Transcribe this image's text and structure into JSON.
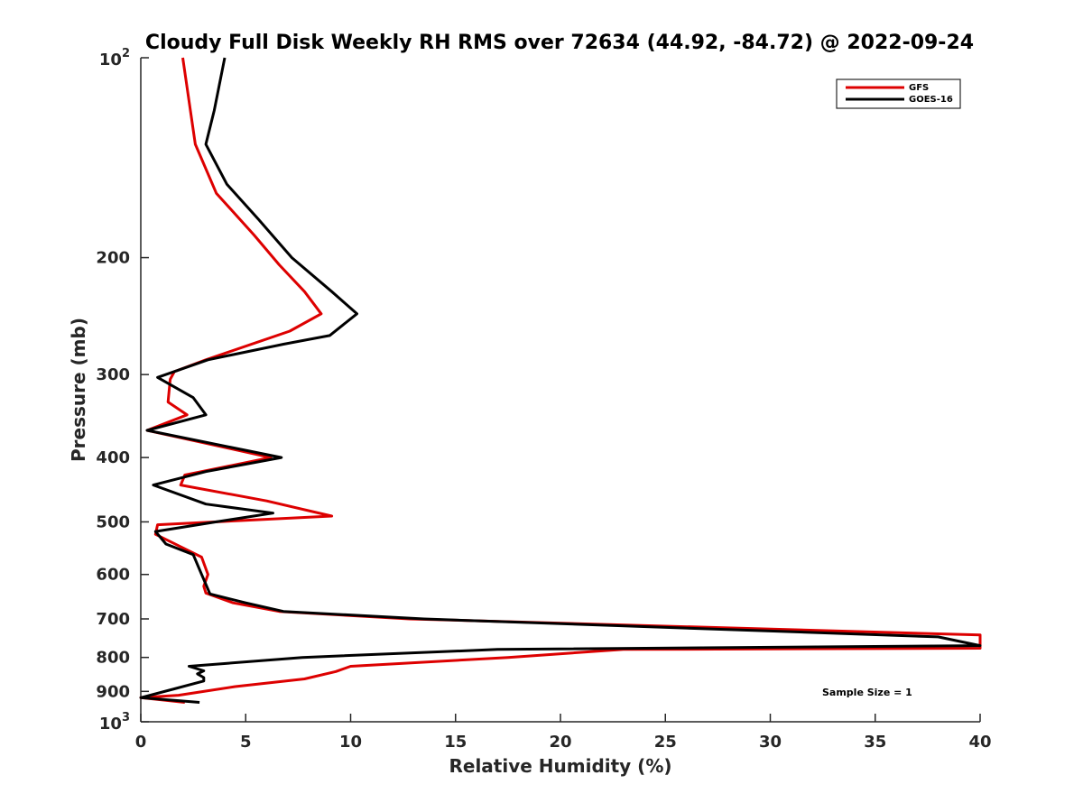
{
  "chart_data": {
    "type": "line",
    "title": "Cloudy Full Disk Weekly RH RMS over 72634 (44.92, -84.72) @ 2022-09-24",
    "xlabel": "Relative Humidity (%)",
    "ylabel": "Pressure (mb)",
    "xlim": [
      0,
      40
    ],
    "ylim": [
      100,
      1000
    ],
    "y_scale": "log",
    "y_reversed": true,
    "grid": false,
    "legend_position": "top-right",
    "x_ticks": [
      "0",
      "5",
      "10",
      "15",
      "20",
      "25",
      "30",
      "35",
      "40"
    ],
    "y_ticks": [
      {
        "value": 100,
        "base": "10",
        "exp": "2"
      },
      {
        "value": 200,
        "label": "200"
      },
      {
        "value": 300,
        "label": "300"
      },
      {
        "value": 400,
        "label": "400"
      },
      {
        "value": 500,
        "label": "500"
      },
      {
        "value": 600,
        "label": "600"
      },
      {
        "value": 700,
        "label": "700"
      },
      {
        "value": 800,
        "label": "800"
      },
      {
        "value": 900,
        "label": "900"
      },
      {
        "value": 1000,
        "base": "10",
        "exp": "3"
      }
    ],
    "annotation": "Sample Size = 1",
    "series": [
      {
        "name": "GFS",
        "color": "#dd0000",
        "points": [
          [
            2.0,
            100
          ],
          [
            2.6,
            135
          ],
          [
            3.6,
            160
          ],
          [
            5.4,
            185
          ],
          [
            6.6,
            205
          ],
          [
            7.8,
            225
          ],
          [
            8.6,
            243
          ],
          [
            7.1,
            258
          ],
          [
            3.1,
            285
          ],
          [
            1.6,
            297
          ],
          [
            1.4,
            305
          ],
          [
            1.3,
            330
          ],
          [
            2.2,
            345
          ],
          [
            0.3,
            364
          ],
          [
            6.2,
            400
          ],
          [
            2.1,
            425
          ],
          [
            1.9,
            440
          ],
          [
            6.0,
            465
          ],
          [
            9.1,
            490
          ],
          [
            0.8,
            505
          ],
          [
            0.7,
            522
          ],
          [
            1.8,
            543
          ],
          [
            2.9,
            565
          ],
          [
            3.2,
            600
          ],
          [
            3.0,
            625
          ],
          [
            3.1,
            640
          ],
          [
            4.4,
            662
          ],
          [
            6.6,
            682
          ],
          [
            12.8,
            700
          ],
          [
            40.0,
            740
          ],
          [
            40.0,
            775
          ],
          [
            23.0,
            778
          ],
          [
            17.5,
            800
          ],
          [
            10.0,
            825
          ],
          [
            9.3,
            840
          ],
          [
            7.8,
            862
          ],
          [
            4.5,
            885
          ],
          [
            1.8,
            912
          ],
          [
            0.0,
            920
          ],
          [
            2.1,
            935
          ]
        ]
      },
      {
        "name": "GOES-16",
        "color": "#000000",
        "points": [
          [
            4.0,
            100
          ],
          [
            3.5,
            120
          ],
          [
            3.1,
            135
          ],
          [
            4.1,
            155
          ],
          [
            5.6,
            175
          ],
          [
            7.2,
            200
          ],
          [
            9.1,
            225
          ],
          [
            10.3,
            243
          ],
          [
            9.0,
            262
          ],
          [
            6.8,
            270
          ],
          [
            3.2,
            285
          ],
          [
            0.8,
            303
          ],
          [
            2.5,
            325
          ],
          [
            3.1,
            345
          ],
          [
            0.3,
            364
          ],
          [
            6.7,
            400
          ],
          [
            3.1,
            420
          ],
          [
            0.6,
            440
          ],
          [
            3.1,
            470
          ],
          [
            6.3,
            485
          ],
          [
            3.6,
            500
          ],
          [
            0.7,
            517
          ],
          [
            1.2,
            540
          ],
          [
            2.5,
            560
          ],
          [
            2.9,
            600
          ],
          [
            3.3,
            642
          ],
          [
            5.0,
            662
          ],
          [
            6.8,
            682
          ],
          [
            13.5,
            700
          ],
          [
            38.0,
            745
          ],
          [
            40.0,
            768
          ],
          [
            17.0,
            778
          ],
          [
            7.7,
            800
          ],
          [
            2.3,
            825
          ],
          [
            3.0,
            838
          ],
          [
            2.7,
            847
          ],
          [
            3.0,
            858
          ],
          [
            3.0,
            868
          ],
          [
            1.6,
            892
          ],
          [
            0.0,
            920
          ],
          [
            2.8,
            935
          ]
        ]
      }
    ]
  }
}
